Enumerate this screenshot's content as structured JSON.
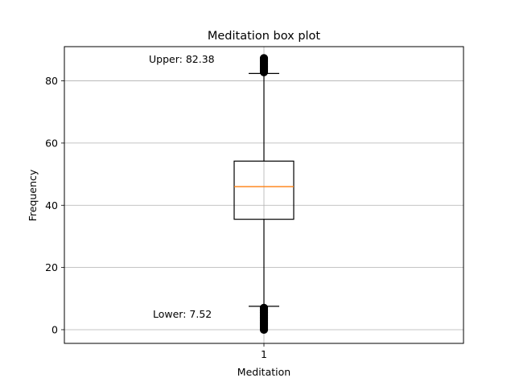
{
  "chart_data": {
    "type": "box",
    "title": "Meditation box plot",
    "xlabel": "Meditation",
    "ylabel": "Frequency",
    "x_ticks": [
      "1"
    ],
    "y_ticks": [
      0,
      20,
      40,
      60,
      80
    ],
    "ylim": [
      -4.4,
      91.0
    ],
    "grid": true,
    "series": [
      {
        "name": "1",
        "whisker_low": 7.52,
        "q1": 35.5,
        "median": 46.0,
        "q3": 54.2,
        "whisker_high": 82.38,
        "outliers_low": [
          7.0,
          6.5,
          6.0,
          5.5,
          5.0,
          4.5,
          4.0,
          3.5,
          3.0,
          2.5,
          2.0,
          1.5,
          1.0,
          0.5,
          0.0
        ],
        "outliers_high": [
          82.8,
          83.3,
          83.8,
          84.3,
          84.8,
          85.3,
          85.8,
          86.3,
          86.8,
          87.3
        ]
      }
    ],
    "annotations": [
      {
        "text": "Upper: 82.38",
        "value": 82.38
      },
      {
        "text": "Lower: 7.52",
        "value": 7.52
      }
    ],
    "colors": {
      "box": "#000000",
      "median": "#ff7f0e",
      "grid": "#b0b0b0",
      "outlier": "#000000"
    }
  }
}
